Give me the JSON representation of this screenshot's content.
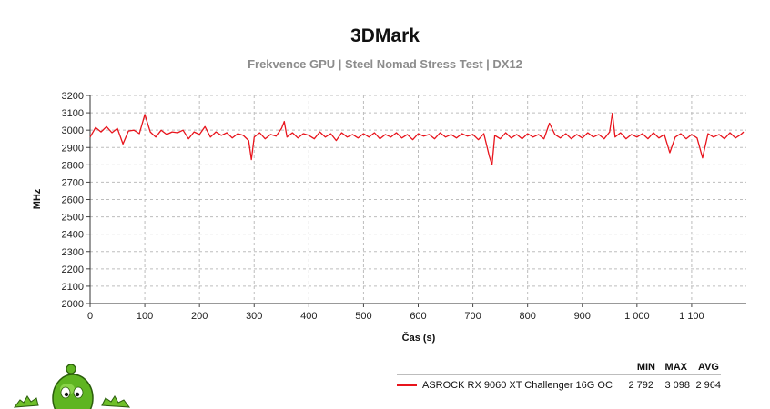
{
  "header": {
    "title": "3DMark",
    "subtitle": "Frekvence GPU | Steel Nomad Stress Test | DX12"
  },
  "legend": {
    "columns": [
      "MIN",
      "MAX",
      "AVG"
    ],
    "series_name": "ASROCK RX 9060 XT Challenger 16G OC",
    "min": "2 792",
    "max": "3 098",
    "avg": "2 964",
    "color": "#e8141c"
  },
  "mascot": {
    "icon": "green-mascot-icon"
  },
  "chart_data": {
    "type": "line",
    "title": "3DMark",
    "subtitle": "Frekvence GPU | Steel Nomad Stress Test | DX12",
    "xlabel": "Čas (s)",
    "ylabel": "MHz",
    "xlim": [
      0,
      1200
    ],
    "ylim": [
      2000,
      3200
    ],
    "x_ticks": [
      0,
      100,
      200,
      300,
      400,
      500,
      600,
      700,
      800,
      900,
      1000,
      1100
    ],
    "x_tick_labels": [
      "0",
      "100",
      "200",
      "300",
      "400",
      "500",
      "600",
      "700",
      "800",
      "900",
      "1 000",
      "1 100"
    ],
    "y_ticks": [
      2000,
      2100,
      2200,
      2300,
      2400,
      2500,
      2600,
      2700,
      2800,
      2900,
      3000,
      3100,
      3200
    ],
    "y_tick_labels": [
      "2000",
      "2100",
      "2200",
      "2300",
      "2400",
      "2500",
      "2600",
      "2700",
      "2800",
      "2900",
      "3000",
      "3100",
      "3200"
    ],
    "grid": true,
    "legend_position": "bottom-right",
    "series": [
      {
        "name": "ASROCK RX 9060 XT Challenger 16G OC",
        "color": "#e8141c",
        "x": [
          0,
          10,
          20,
          30,
          40,
          50,
          60,
          70,
          80,
          90,
          100,
          110,
          120,
          130,
          140,
          150,
          160,
          170,
          180,
          190,
          200,
          210,
          220,
          230,
          240,
          250,
          260,
          270,
          280,
          290,
          295,
          300,
          310,
          320,
          330,
          340,
          350,
          355,
          360,
          370,
          380,
          390,
          400,
          410,
          420,
          430,
          440,
          450,
          460,
          470,
          480,
          490,
          500,
          510,
          520,
          530,
          540,
          550,
          560,
          570,
          580,
          590,
          600,
          610,
          620,
          630,
          640,
          650,
          660,
          670,
          680,
          690,
          700,
          710,
          720,
          730,
          735,
          740,
          750,
          760,
          770,
          780,
          790,
          800,
          810,
          820,
          830,
          840,
          850,
          860,
          870,
          880,
          890,
          900,
          910,
          920,
          930,
          940,
          950,
          955,
          960,
          970,
          980,
          990,
          1000,
          1010,
          1020,
          1030,
          1040,
          1050,
          1060,
          1070,
          1080,
          1090,
          1100,
          1110,
          1120,
          1130,
          1140,
          1150,
          1160,
          1170,
          1180,
          1190,
          1195
        ],
        "values": [
          2960,
          3015,
          2990,
          3020,
          2985,
          3010,
          2920,
          2995,
          3000,
          2980,
          3090,
          2990,
          2960,
          3000,
          2975,
          2990,
          2985,
          3000,
          2950,
          2990,
          2975,
          3020,
          2960,
          2990,
          2970,
          2985,
          2955,
          2980,
          2970,
          2940,
          2830,
          2960,
          2985,
          2950,
          2975,
          2965,
          3010,
          3050,
          2960,
          2985,
          2955,
          2980,
          2970,
          2950,
          2990,
          2960,
          2980,
          2940,
          2985,
          2960,
          2975,
          2955,
          2980,
          2960,
          2985,
          2950,
          2975,
          2960,
          2985,
          2955,
          2975,
          2945,
          2980,
          2965,
          2975,
          2950,
          2985,
          2960,
          2975,
          2955,
          2980,
          2965,
          2975,
          2945,
          2980,
          2850,
          2800,
          2970,
          2950,
          2985,
          2955,
          2975,
          2950,
          2980,
          2960,
          2975,
          2950,
          3040,
          2975,
          2955,
          2980,
          2950,
          2975,
          2955,
          2985,
          2960,
          2975,
          2950,
          2990,
          3098,
          2960,
          2985,
          2950,
          2975,
          2960,
          2980,
          2950,
          2985,
          2955,
          2975,
          2870,
          2960,
          2980,
          2950,
          2975,
          2955,
          2840,
          2980,
          2960,
          2975,
          2950,
          2985,
          2955,
          2975,
          2990
        ]
      }
    ]
  }
}
